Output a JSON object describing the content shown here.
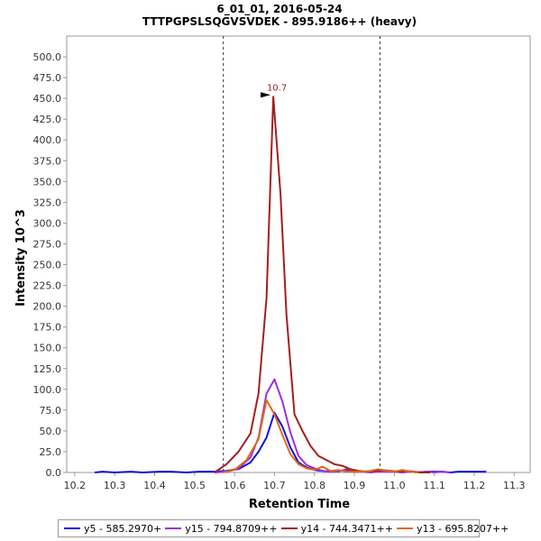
{
  "chart_data": {
    "type": "line",
    "title": "6_01_01, 2016-05-24",
    "subtitle": "TTTPGPSLSQGVSVDEK - 895.9186++ (heavy)",
    "xlabel": "Retention Time",
    "ylabel": "Intensity 10^3",
    "xlim": [
      10.18,
      11.34
    ],
    "ylim": [
      0,
      525
    ],
    "xticks": [
      "10.2",
      "10.3",
      "10.4",
      "10.5",
      "10.6",
      "10.7",
      "10.8",
      "10.9",
      "11.0",
      "11.1",
      "11.2",
      "11.3"
    ],
    "yticks": [
      "0.0",
      "25.0",
      "50.0",
      "75.0",
      "100.0",
      "125.0",
      "150.0",
      "175.0",
      "200.0",
      "225.0",
      "250.0",
      "275.0",
      "300.0",
      "325.0",
      "350.0",
      "375.0",
      "400.0",
      "425.0",
      "450.0",
      "475.0",
      "500.0"
    ],
    "boundaries": [
      10.572,
      10.964
    ],
    "peak_annotation": {
      "label": "10.7",
      "x": 10.697,
      "y": 452
    },
    "grid": false,
    "legend_position": "bottom",
    "series": [
      {
        "name": "y5 - 585.2970+",
        "color": "#1010e0",
        "x": [
          10.25,
          10.27,
          10.3,
          10.34,
          10.37,
          10.41,
          10.44,
          10.48,
          10.51,
          10.55,
          10.58,
          10.61,
          10.64,
          10.66,
          10.68,
          10.7,
          10.72,
          10.74,
          10.76,
          10.78,
          10.8,
          10.82,
          10.84,
          10.86,
          10.88,
          10.9,
          10.92,
          10.94,
          10.96,
          10.98,
          11.0,
          11.02,
          11.04,
          11.06,
          11.08,
          11.1,
          11.12,
          11.14,
          11.16,
          11.18,
          11.2,
          11.23
        ],
        "y": [
          0,
          1,
          0,
          1,
          0,
          1,
          1,
          0,
          1,
          1,
          2,
          4,
          12,
          25,
          42,
          72,
          55,
          30,
          12,
          6,
          3,
          2,
          1,
          2,
          3,
          1,
          1,
          1,
          2,
          1,
          1,
          1,
          1,
          0,
          1,
          1,
          1,
          0,
          1,
          1,
          1,
          1
        ]
      },
      {
        "name": "y15 - 794.8709++",
        "color": "#9a30e0",
        "x": [
          10.55,
          10.58,
          10.61,
          10.64,
          10.66,
          10.68,
          10.7,
          10.72,
          10.74,
          10.76,
          10.78,
          10.8,
          10.82,
          10.84,
          10.86,
          10.88,
          10.9,
          10.92,
          10.94,
          10.96,
          10.98,
          11.0,
          11.02,
          11.04,
          11.06,
          11.08,
          11.1,
          11.12,
          11.14
        ],
        "y": [
          0,
          1,
          5,
          18,
          42,
          95,
          112,
          85,
          48,
          20,
          9,
          5,
          2,
          1,
          1,
          4,
          2,
          1,
          0,
          1,
          1,
          1,
          0,
          1,
          0,
          1,
          0,
          1,
          0
        ]
      },
      {
        "name": "y14 - 744.3471++",
        "color": "#a02020",
        "x": [
          10.55,
          10.58,
          10.61,
          10.64,
          10.66,
          10.68,
          10.697,
          10.715,
          10.73,
          10.75,
          10.77,
          10.79,
          10.81,
          10.83,
          10.85,
          10.87,
          10.89,
          10.91,
          10.93,
          10.95,
          10.97,
          10.99,
          11.01,
          11.03,
          11.05,
          11.07,
          11.09
        ],
        "y": [
          0,
          10,
          25,
          47,
          95,
          210,
          452,
          335,
          190,
          70,
          50,
          32,
          20,
          15,
          10,
          8,
          4,
          2,
          1,
          2,
          3,
          2,
          1,
          2,
          1,
          0,
          0
        ]
      },
      {
        "name": "y13 - 695.8207++",
        "color": "#e06a10",
        "x": [
          10.57,
          10.6,
          10.63,
          10.66,
          10.68,
          10.7,
          10.72,
          10.74,
          10.76,
          10.78,
          10.8,
          10.82,
          10.84,
          10.86,
          10.88,
          10.9,
          10.92,
          10.94,
          10.96,
          10.98,
          11.0,
          11.02,
          11.04,
          11.06
        ],
        "y": [
          0,
          3,
          15,
          40,
          87,
          70,
          45,
          22,
          10,
          5,
          3,
          7,
          2,
          3,
          1,
          1,
          1,
          2,
          4,
          2,
          1,
          3,
          1,
          0
        ]
      }
    ]
  }
}
